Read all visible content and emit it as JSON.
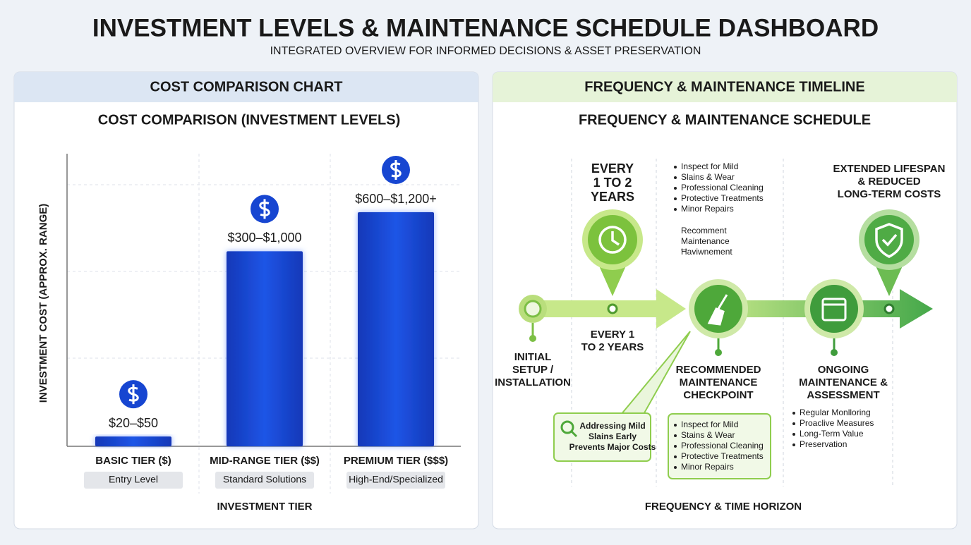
{
  "header": {
    "title": "INVESTMENT LEVELS & MAINTENANCE SCHEDULE DASHBOARD",
    "subtitle": "INTEGRATED OVERVIEW FOR INFORMED DECISIONS & ASSET PRESERVATION"
  },
  "cost_panel": {
    "header": "COST COMPARISON CHART"
  },
  "chart_data": {
    "type": "bar",
    "title": "COST COMPARISON (INVESTMENT LEVELS)",
    "categories": [
      "BASIC TIER ($)",
      "MID-RANGE TIER ($$)",
      "PREMIUM TIER ($$$)"
    ],
    "category_notes": [
      "Entry Level",
      "Standard Solutions",
      "High-End/Specialized"
    ],
    "values": [
      50,
      1000,
      1200
    ],
    "value_labels": [
      "$20–$50",
      "$300–$1,000",
      "$600–$1,200+"
    ],
    "ylim": [
      0,
      1500
    ],
    "color": "#1746d1",
    "ylabel": "INVESTMENT COST (APPROX. RANGE)",
    "xlabel": "INVESTMENT TIER"
  },
  "timeline": {
    "header": "FREQUENCY & MAINTENANCE TIMELINE",
    "title": "FREQUENCY & MAINTENANCE SCHEDULE",
    "top_frequency": [
      "EVERY",
      "1 TO 2",
      "YEARS"
    ],
    "top_tasks": [
      "Inspect for Mild",
      "Slains & Wear",
      "Professional Cleaning",
      "Protective Treatments",
      "Minor Repairs"
    ],
    "top_note": [
      "Recomment",
      "Maintenance",
      "Ħaviwnement"
    ],
    "lower_frequency": [
      "EVERY 1",
      "TO 2 YEARS"
    ],
    "initial": [
      "INITIAL",
      "SETUP /",
      "INSTALLATION"
    ],
    "checkpoint": [
      "RECOMMENDED",
      "MAINTENANCE",
      "CHECKPOINT"
    ],
    "ongoing": [
      "ONGOING",
      "MAINTENANCE &",
      "ASSESSMENT"
    ],
    "extended": [
      "EXTENDED LIFESPAN",
      "& REDUCED",
      "LONG-TERM COSTS"
    ],
    "callout": [
      "Addressing Mild",
      "Slains Early",
      "Prevents Major Costs"
    ],
    "checkpoint_tasks": [
      "Inspect for Mild",
      "Stains & Wear",
      "Professional Cleaning",
      "Protective Treatments",
      "Minor Repairs"
    ],
    "ongoing_tasks": [
      "Regular Monlloring",
      "Proaclive Measures",
      "Long-Term Value",
      "Preservation"
    ],
    "xlabel": "FREQUENCY & TIME HORIZON"
  }
}
